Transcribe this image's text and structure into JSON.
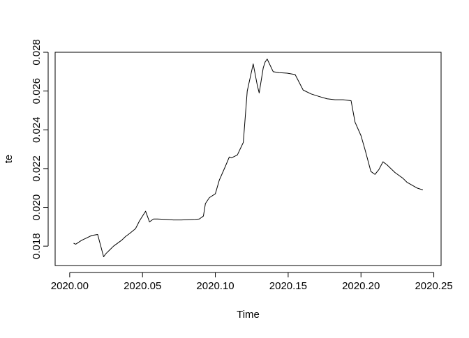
{
  "chart_data": {
    "type": "line",
    "title": "",
    "xlabel": "Time",
    "ylabel": "te",
    "xlim": [
      2019.99,
      2020.255
    ],
    "ylim": [
      0.017,
      0.028
    ],
    "x_ticks": [
      2020.0,
      2020.05,
      2020.1,
      2020.15,
      2020.2,
      2020.25
    ],
    "x_tick_labels": [
      "2020.00",
      "2020.05",
      "2020.10",
      "2020.15",
      "2020.20",
      "2020.25"
    ],
    "y_ticks": [
      0.018,
      0.02,
      0.022,
      0.024,
      0.026,
      0.028
    ],
    "y_tick_labels": [
      "0.018",
      "0.020",
      "0.022",
      "0.024",
      "0.026",
      "0.028"
    ],
    "grid": false,
    "legend": "none",
    "line_color": "#000000",
    "series": [
      {
        "x": [
          2020.0027,
          2020.0041,
          2020.0082,
          2020.011,
          2020.0151,
          2020.0192,
          2020.0233,
          2020.0247,
          2020.0274,
          2020.0301,
          2020.0356,
          2020.0384,
          2020.0411,
          2020.0452,
          2020.0479,
          2020.0521,
          2020.0548,
          2020.0575,
          2020.0603,
          2020.0658,
          2020.0712,
          2020.0767,
          2020.0822,
          2020.0863,
          2020.089,
          2020.0918,
          2020.0932,
          2020.0959,
          2020.1,
          2020.1027,
          2020.1068,
          2020.1096,
          2020.111,
          2020.1151,
          2020.1192,
          2020.1219,
          2020.126,
          2020.1288,
          2020.1301,
          2020.1329,
          2020.1342,
          2020.1356,
          2020.1397,
          2020.1438,
          2020.1493,
          2020.1548,
          2020.1603,
          2020.1658,
          2020.1712,
          2020.1767,
          2020.1822,
          2020.1877,
          2020.1932,
          2020.1959,
          2020.2,
          2020.2027,
          2020.2068,
          2020.2096,
          2020.2123,
          2020.2151,
          2020.2178,
          2020.2233,
          2020.2288,
          2020.2315,
          2020.2384,
          2020.2425
        ],
        "y": [
          0.01815,
          0.0181,
          0.0183,
          0.0184,
          0.01855,
          0.0186,
          0.01745,
          0.0176,
          0.0178,
          0.018,
          0.0183,
          0.0185,
          0.01865,
          0.0189,
          0.0193,
          0.0198,
          0.01925,
          0.0194,
          0.0194,
          0.01938,
          0.01935,
          0.01935,
          0.01937,
          0.01938,
          0.0194,
          0.01955,
          0.0202,
          0.0205,
          0.0207,
          0.0214,
          0.0221,
          0.0226,
          0.02255,
          0.0227,
          0.02335,
          0.026,
          0.0274,
          0.0263,
          0.0259,
          0.0272,
          0.0275,
          0.02765,
          0.027,
          0.02695,
          0.02692,
          0.02685,
          0.02605,
          0.02585,
          0.02572,
          0.0256,
          0.02555,
          0.02555,
          0.0255,
          0.0244,
          0.0237,
          0.023,
          0.02185,
          0.0217,
          0.02195,
          0.02235,
          0.0222,
          0.0218,
          0.0215,
          0.0213,
          0.021,
          0.0209
        ]
      }
    ]
  }
}
